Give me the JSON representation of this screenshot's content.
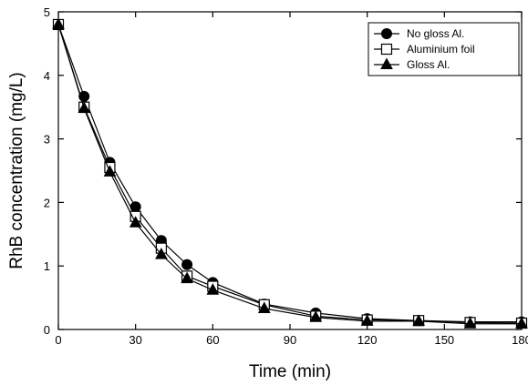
{
  "chart_data": {
    "type": "line",
    "title": "",
    "xlabel": "Time (min)",
    "ylabel": "RhB concentration (mg/L)",
    "xlim": [
      0,
      180
    ],
    "ylim": [
      0,
      5
    ],
    "xticks": [
      0,
      30,
      60,
      90,
      120,
      150,
      180
    ],
    "yticks": [
      0,
      1,
      2,
      3,
      4,
      5
    ],
    "grid": false,
    "legend_position": "top-right",
    "x": [
      0,
      10,
      20,
      30,
      40,
      50,
      60,
      80,
      100,
      120,
      140,
      160,
      180
    ],
    "series": [
      {
        "name": "No gloss Al.",
        "marker": "circle-filled",
        "color": "#000000",
        "values": [
          4.8,
          3.67,
          2.63,
          1.93,
          1.4,
          1.02,
          0.74,
          0.4,
          0.26,
          0.17,
          0.14,
          0.12,
          0.12
        ]
      },
      {
        "name": "Aluminium foil",
        "marker": "square-open",
        "color": "#000000",
        "values": [
          4.8,
          3.5,
          2.55,
          1.78,
          1.28,
          0.84,
          0.68,
          0.39,
          0.21,
          0.15,
          0.14,
          0.11,
          0.1
        ]
      },
      {
        "name": "Gloss Al.",
        "marker": "triangle-filled",
        "color": "#000000",
        "values": [
          4.8,
          3.48,
          2.48,
          1.68,
          1.18,
          0.8,
          0.62,
          0.33,
          0.19,
          0.13,
          0.13,
          0.09,
          0.09
        ]
      }
    ]
  }
}
